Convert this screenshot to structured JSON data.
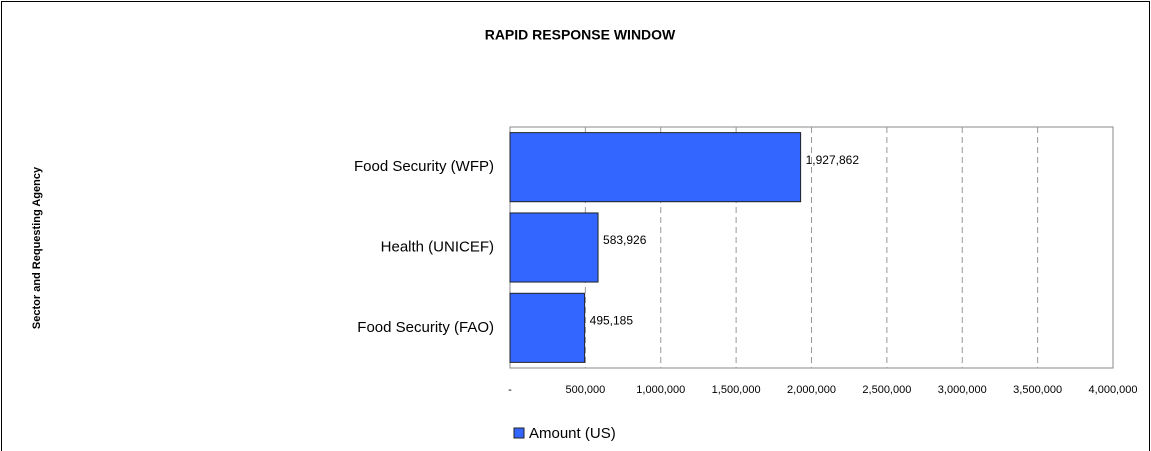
{
  "chart_data": {
    "type": "bar",
    "orientation": "horizontal",
    "title": "RAPID RESPONSE WINDOW",
    "y_label": "Sector and Requesting Agency",
    "categories": [
      "Food Security (WFP)",
      "Health (UNICEF)",
      "Food Security (FAO)"
    ],
    "series": [
      {
        "name": "Amount (US)",
        "color": "#3366ff",
        "values": [
          1927862,
          583926,
          495185
        ],
        "value_labels": [
          "1,927,862",
          "583,926",
          "495,185"
        ]
      }
    ],
    "xlim": [
      0,
      4000000
    ],
    "xticks": [
      {
        "value": 0,
        "label": "-"
      },
      {
        "value": 500000,
        "label": "500,000"
      },
      {
        "value": 1000000,
        "label": "1,000,000"
      },
      {
        "value": 1500000,
        "label": "1,500,000"
      },
      {
        "value": 2000000,
        "label": "2,000,000"
      },
      {
        "value": 2500000,
        "label": "2,500,000"
      },
      {
        "value": 3000000,
        "label": "3,000,000"
      },
      {
        "value": 3500000,
        "label": "3,500,000"
      },
      {
        "value": 4000000,
        "label": "4,000,000"
      }
    ],
    "grid": true,
    "legend": "bottom"
  }
}
